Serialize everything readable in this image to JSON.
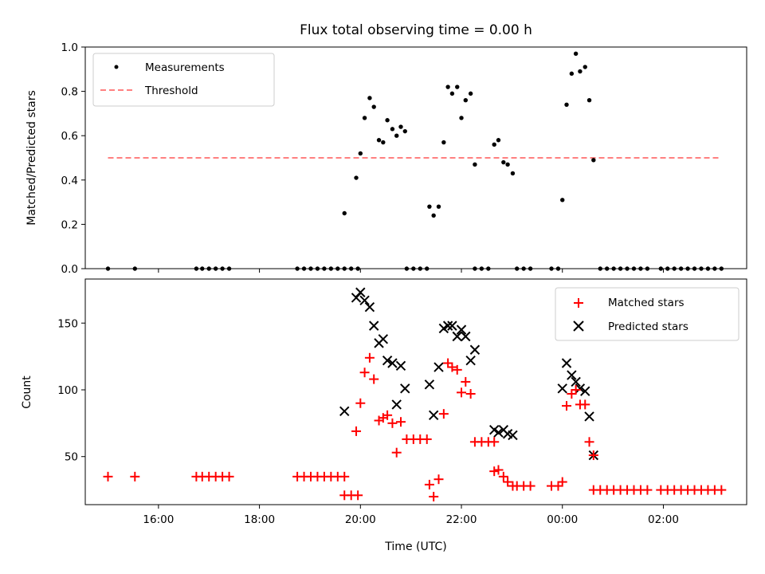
{
  "chart_data": [
    {
      "type": "scatter",
      "title": "Flux total observing time = 0.00 h",
      "ylabel": "Matched/Predicted stars",
      "ylim": [
        0,
        1.0
      ],
      "yticks": [
        "0.0",
        "0.2",
        "0.4",
        "0.6",
        "0.8",
        "1.0"
      ],
      "legend_position": "top-left",
      "grid": false,
      "series": [
        {
          "name": "Measurements",
          "marker": "dot",
          "color": "#000000",
          "points": [
            [
              "15:00",
              0.0
            ],
            [
              "15:32",
              0.0
            ],
            [
              "16:45",
              0.0
            ],
            [
              "16:52",
              0.0
            ],
            [
              "17:00",
              0.0
            ],
            [
              "17:08",
              0.0
            ],
            [
              "17:16",
              0.0
            ],
            [
              "17:24",
              0.0
            ],
            [
              "18:45",
              0.0
            ],
            [
              "18:53",
              0.0
            ],
            [
              "19:01",
              0.0
            ],
            [
              "19:09",
              0.0
            ],
            [
              "19:17",
              0.0
            ],
            [
              "19:25",
              0.0
            ],
            [
              "19:33",
              0.0
            ],
            [
              "19:41",
              0.0
            ],
            [
              "19:49",
              0.0
            ],
            [
              "19:57",
              0.0
            ],
            [
              "19:41",
              0.25
            ],
            [
              "19:55",
              0.41
            ],
            [
              "20:00",
              0.52
            ],
            [
              "20:05",
              0.68
            ],
            [
              "20:11",
              0.77
            ],
            [
              "20:16",
              0.73
            ],
            [
              "20:22",
              0.58
            ],
            [
              "20:27",
              0.57
            ],
            [
              "20:32",
              0.67
            ],
            [
              "20:38",
              0.63
            ],
            [
              "20:43",
              0.6
            ],
            [
              "20:48",
              0.64
            ],
            [
              "20:53",
              0.62
            ],
            [
              "20:55",
              0.0
            ],
            [
              "21:03",
              0.0
            ],
            [
              "21:11",
              0.0
            ],
            [
              "21:19",
              0.0
            ],
            [
              "21:22",
              0.28
            ],
            [
              "21:27",
              0.24
            ],
            [
              "21:33",
              0.28
            ],
            [
              "21:39",
              0.57
            ],
            [
              "21:44",
              0.82
            ],
            [
              "21:49",
              0.79
            ],
            [
              "21:55",
              0.82
            ],
            [
              "22:00",
              0.68
            ],
            [
              "22:05",
              0.76
            ],
            [
              "22:11",
              0.79
            ],
            [
              "22:16",
              0.47
            ],
            [
              "22:16",
              0.0
            ],
            [
              "22:24",
              0.0
            ],
            [
              "22:32",
              0.0
            ],
            [
              "22:39",
              0.56
            ],
            [
              "22:44",
              0.58
            ],
            [
              "22:50",
              0.48
            ],
            [
              "22:55",
              0.47
            ],
            [
              "23:01",
              0.43
            ],
            [
              "23:06",
              0.0
            ],
            [
              "23:14",
              0.0
            ],
            [
              "23:22",
              0.0
            ],
            [
              "23:47",
              0.0
            ],
            [
              "23:55",
              0.0
            ],
            [
              "00:00",
              0.31
            ],
            [
              "00:05",
              0.74
            ],
            [
              "00:11",
              0.88
            ],
            [
              "00:16",
              0.97
            ],
            [
              "00:21",
              0.89
            ],
            [
              "00:27",
              0.91
            ],
            [
              "00:32",
              0.76
            ],
            [
              "00:37",
              0.49
            ],
            [
              "00:45",
              0.0
            ],
            [
              "00:53",
              0.0
            ],
            [
              "01:01",
              0.0
            ],
            [
              "01:09",
              0.0
            ],
            [
              "01:17",
              0.0
            ],
            [
              "01:25",
              0.0
            ],
            [
              "01:33",
              0.0
            ],
            [
              "01:41",
              0.0
            ],
            [
              "01:57",
              0.0
            ],
            [
              "02:05",
              0.0
            ],
            [
              "02:13",
              0.0
            ],
            [
              "02:21",
              0.0
            ],
            [
              "02:29",
              0.0
            ],
            [
              "02:37",
              0.0
            ],
            [
              "02:45",
              0.0
            ],
            [
              "02:53",
              0.0
            ],
            [
              "03:01",
              0.0
            ],
            [
              "03:09",
              0.0
            ]
          ]
        },
        {
          "name": "Threshold",
          "marker": "dashed-line",
          "color": "#ff8080",
          "points": [
            [
              "15:00",
              0.5
            ],
            [
              "03:09",
              0.5
            ]
          ]
        }
      ]
    },
    {
      "type": "scatter",
      "xlabel": "Time (UTC)",
      "ylabel": "Count",
      "ylim": [
        14,
        183
      ],
      "yticks": [
        "50",
        "100",
        "150"
      ],
      "xticks": [
        "16:00",
        "18:00",
        "20:00",
        "22:00",
        "00:00",
        "02:00"
      ],
      "legend_position": "top-right",
      "grid": false,
      "series": [
        {
          "name": "Matched stars",
          "marker": "plus",
          "color": "#ff0000",
          "points": [
            [
              "15:00",
              35
            ],
            [
              "15:32",
              35
            ],
            [
              "16:45",
              35
            ],
            [
              "16:52",
              35
            ],
            [
              "17:00",
              35
            ],
            [
              "17:08",
              35
            ],
            [
              "17:16",
              35
            ],
            [
              "17:24",
              35
            ],
            [
              "18:45",
              35
            ],
            [
              "18:53",
              35
            ],
            [
              "19:01",
              35
            ],
            [
              "19:09",
              35
            ],
            [
              "19:17",
              35
            ],
            [
              "19:25",
              35
            ],
            [
              "19:33",
              35
            ],
            [
              "19:41",
              35
            ],
            [
              "19:41",
              21
            ],
            [
              "19:49",
              21
            ],
            [
              "19:57",
              21
            ],
            [
              "19:55",
              69
            ],
            [
              "20:00",
              90
            ],
            [
              "20:05",
              113
            ],
            [
              "20:11",
              124
            ],
            [
              "20:16",
              108
            ],
            [
              "20:22",
              77
            ],
            [
              "20:27",
              79
            ],
            [
              "20:32",
              81
            ],
            [
              "20:38",
              75
            ],
            [
              "20:43",
              53
            ],
            [
              "20:48",
              76
            ],
            [
              "20:55",
              63
            ],
            [
              "21:03",
              63
            ],
            [
              "21:11",
              63
            ],
            [
              "21:19",
              63
            ],
            [
              "21:22",
              29
            ],
            [
              "21:27",
              20
            ],
            [
              "21:33",
              33
            ],
            [
              "21:39",
              82
            ],
            [
              "21:44",
              120
            ],
            [
              "21:49",
              117
            ],
            [
              "21:55",
              115
            ],
            [
              "22:00",
              98
            ],
            [
              "22:05",
              106
            ],
            [
              "22:11",
              97
            ],
            [
              "22:16",
              61
            ],
            [
              "22:24",
              61
            ],
            [
              "22:32",
              61
            ],
            [
              "22:39",
              61
            ],
            [
              "22:39",
              39
            ],
            [
              "22:44",
              40
            ],
            [
              "22:50",
              35
            ],
            [
              "22:55",
              31
            ],
            [
              "23:01",
              28
            ],
            [
              "23:06",
              28
            ],
            [
              "23:14",
              28
            ],
            [
              "23:22",
              28
            ],
            [
              "23:47",
              28
            ],
            [
              "23:55",
              28
            ],
            [
              "00:00",
              31
            ],
            [
              "00:05",
              88
            ],
            [
              "00:11",
              97
            ],
            [
              "00:16",
              100
            ],
            [
              "00:21",
              89
            ],
            [
              "00:27",
              89
            ],
            [
              "00:32",
              61
            ],
            [
              "00:37",
              51
            ],
            [
              "00:37",
              25
            ],
            [
              "00:45",
              25
            ],
            [
              "00:53",
              25
            ],
            [
              "01:01",
              25
            ],
            [
              "01:09",
              25
            ],
            [
              "01:17",
              25
            ],
            [
              "01:25",
              25
            ],
            [
              "01:33",
              25
            ],
            [
              "01:41",
              25
            ],
            [
              "01:57",
              25
            ],
            [
              "02:05",
              25
            ],
            [
              "02:13",
              25
            ],
            [
              "02:21",
              25
            ],
            [
              "02:29",
              25
            ],
            [
              "02:37",
              25
            ],
            [
              "02:45",
              25
            ],
            [
              "02:53",
              25
            ],
            [
              "03:01",
              25
            ],
            [
              "03:09",
              25
            ]
          ]
        },
        {
          "name": "Predicted stars",
          "marker": "x",
          "color": "#000000",
          "points": [
            [
              "19:41",
              84
            ],
            [
              "19:55",
              169
            ],
            [
              "20:00",
              173
            ],
            [
              "20:05",
              167
            ],
            [
              "20:11",
              162
            ],
            [
              "20:16",
              148
            ],
            [
              "20:22",
              135
            ],
            [
              "20:27",
              138
            ],
            [
              "20:32",
              122
            ],
            [
              "20:38",
              120
            ],
            [
              "20:43",
              89
            ],
            [
              "20:48",
              118
            ],
            [
              "20:53",
              101
            ],
            [
              "21:22",
              104
            ],
            [
              "21:27",
              81
            ],
            [
              "21:33",
              117
            ],
            [
              "21:39",
              146
            ],
            [
              "21:44",
              148
            ],
            [
              "21:49",
              148
            ],
            [
              "21:55",
              140
            ],
            [
              "22:00",
              145
            ],
            [
              "22:05",
              140
            ],
            [
              "22:11",
              122
            ],
            [
              "22:16",
              130
            ],
            [
              "22:39",
              70
            ],
            [
              "22:44",
              68
            ],
            [
              "22:50",
              70
            ],
            [
              "22:55",
              67
            ],
            [
              "23:01",
              66
            ],
            [
              "00:00",
              101
            ],
            [
              "00:05",
              120
            ],
            [
              "00:11",
              111
            ],
            [
              "00:16",
              106
            ],
            [
              "00:21",
              101
            ],
            [
              "00:27",
              99
            ],
            [
              "00:32",
              80
            ],
            [
              "00:37",
              51
            ]
          ]
        }
      ]
    }
  ]
}
